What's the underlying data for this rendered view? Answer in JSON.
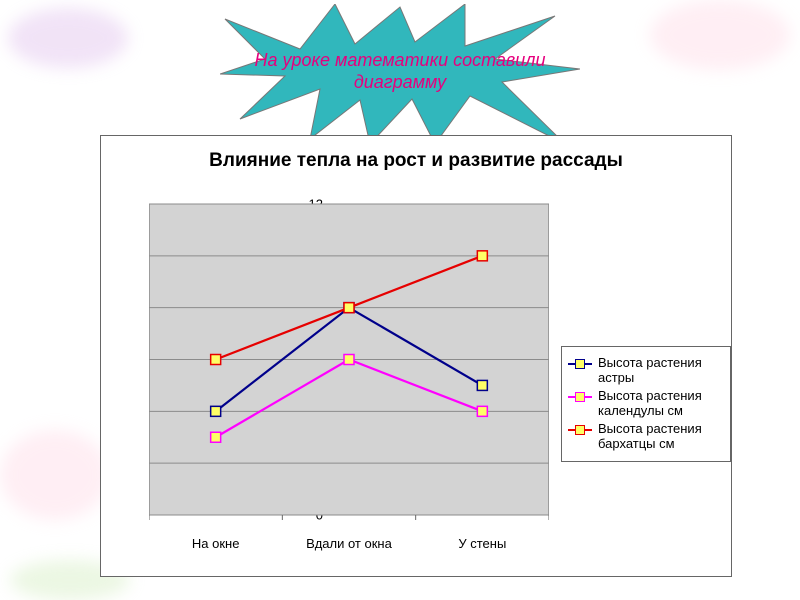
{
  "starburst": {
    "line1": "На уроке математики составили",
    "line2": "диаграмму",
    "fill": "#31b7bc",
    "stroke": "#777777",
    "text_color": "#e6007e"
  },
  "chart": {
    "type": "line",
    "title": "Влияние тепла на рост и развитие рассады",
    "title_fontsize": 19,
    "background_color": "#ffffff",
    "plot_bg": "#d3d3d3",
    "grid_color": "#8b8b8b",
    "axis_color": "#666666",
    "categories_labels": [
      "На окне",
      "Вдали от окна",
      "У стены"
    ],
    "ylim": [
      0,
      12
    ],
    "ytick_step": 2,
    "series": [
      {
        "name": "Высота растения астры",
        "color": "#00008b",
        "marker_fill": "#ffff66",
        "marker_stroke": "#00008b",
        "values": [
          4,
          8,
          5
        ]
      },
      {
        "name": "Высота растения календулы см",
        "color": "#ff00ff",
        "marker_fill": "#ffff66",
        "marker_stroke": "#ff00ff",
        "values": [
          3,
          6,
          4
        ]
      },
      {
        "name": "Высота растения бархатцы см",
        "color": "#e60000",
        "marker_fill": "#ffff66",
        "marker_stroke": "#e60000",
        "values": [
          6,
          8,
          10
        ]
      }
    ],
    "line_width": 2.2,
    "marker_size": 10,
    "tick_fontsize": 13,
    "legend_fontsize": 13
  }
}
